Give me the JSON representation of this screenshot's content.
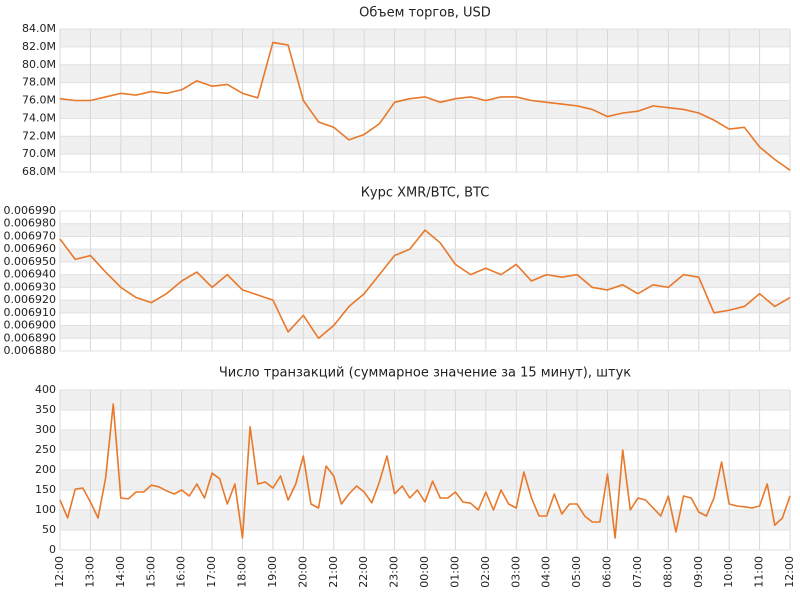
{
  "chart_data": [
    {
      "type": "line",
      "title": "Объем торгов, USD",
      "color": "#e8782a",
      "grid": true,
      "values": [
        76200000,
        76000000,
        76000000,
        76400000,
        76800000,
        76600000,
        77000000,
        76800000,
        77200000,
        78200000,
        77600000,
        77800000,
        76800000,
        76300000,
        82500000,
        82200000,
        76000000,
        73600000,
        73000000,
        71600000,
        72200000,
        73400000,
        75800000,
        76200000,
        76400000,
        75800000,
        76200000,
        76400000,
        76000000,
        76400000,
        76400000,
        76000000,
        75800000,
        75600000,
        75400000,
        75000000,
        74200000,
        74600000,
        74800000,
        75400000,
        75200000,
        75000000,
        74600000,
        73800000,
        72800000,
        73000000,
        70800000,
        69400000,
        68200000
      ],
      "ylim": [
        68000000,
        84000000
      ],
      "yticks": [
        {
          "value": 68000000,
          "label": "68.0M"
        },
        {
          "value": 70000000,
          "label": "70.0M"
        },
        {
          "value": 72000000,
          "label": "72.0M"
        },
        {
          "value": 74000000,
          "label": "74.0M"
        },
        {
          "value": 76000000,
          "label": "76.0M"
        },
        {
          "value": 78000000,
          "label": "78.0M"
        },
        {
          "value": 80000000,
          "label": "80.0M"
        },
        {
          "value": 82000000,
          "label": "82.0M"
        },
        {
          "value": 84000000,
          "label": "84.0M"
        }
      ]
    },
    {
      "type": "line",
      "title": "Курс XMR/BTC, BTC",
      "color": "#e8782a",
      "grid": true,
      "values": [
        0.006968,
        0.006952,
        0.006955,
        0.006942,
        0.00693,
        0.006922,
        0.006918,
        0.006925,
        0.006935,
        0.006942,
        0.00693,
        0.00694,
        0.006928,
        0.006924,
        0.00692,
        0.006895,
        0.006908,
        0.00689,
        0.0069,
        0.006915,
        0.006925,
        0.00694,
        0.006955,
        0.00696,
        0.006975,
        0.006965,
        0.006948,
        0.00694,
        0.006945,
        0.00694,
        0.006948,
        0.006935,
        0.00694,
        0.006938,
        0.00694,
        0.00693,
        0.006928,
        0.006932,
        0.006925,
        0.006932,
        0.00693,
        0.00694,
        0.006938,
        0.00691,
        0.006912,
        0.006915,
        0.006925,
        0.006915,
        0.006922
      ],
      "ylim": [
        0.00688,
        0.00699
      ],
      "yticks": [
        {
          "value": 0.00688,
          "label": "0.006880"
        },
        {
          "value": 0.00689,
          "label": "0.006890"
        },
        {
          "value": 0.0069,
          "label": "0.006900"
        },
        {
          "value": 0.00691,
          "label": "0.006910"
        },
        {
          "value": 0.00692,
          "label": "0.006920"
        },
        {
          "value": 0.00693,
          "label": "0.006930"
        },
        {
          "value": 0.00694,
          "label": "0.006940"
        },
        {
          "value": 0.00695,
          "label": "0.006950"
        },
        {
          "value": 0.00696,
          "label": "0.006960"
        },
        {
          "value": 0.00697,
          "label": "0.006970"
        },
        {
          "value": 0.00698,
          "label": "0.006980"
        },
        {
          "value": 0.00699,
          "label": "0.006990"
        }
      ]
    },
    {
      "type": "line",
      "title": "Число транзакций (суммарное значение за 15 минут), штук",
      "color": "#e8782a",
      "grid": true,
      "categories": [
        "12:00",
        null,
        null,
        null,
        "13:00",
        null,
        null,
        null,
        "14:00",
        null,
        null,
        null,
        "15:00",
        null,
        null,
        null,
        "16:00",
        null,
        null,
        null,
        "17:00",
        null,
        null,
        null,
        "18:00",
        null,
        null,
        null,
        "19:00",
        null,
        null,
        null,
        "20:00",
        null,
        null,
        null,
        "21:00",
        null,
        null,
        null,
        "22:00",
        null,
        null,
        null,
        "23:00",
        null,
        null,
        null,
        "00:00",
        null,
        null,
        null,
        "01:00",
        null,
        null,
        null,
        "02:00",
        null,
        null,
        null,
        "03:00",
        null,
        null,
        null,
        "04:00",
        null,
        null,
        null,
        "05:00",
        null,
        null,
        null,
        "06:00",
        null,
        null,
        null,
        "07:00",
        null,
        null,
        null,
        "08:00",
        null,
        null,
        null,
        "09:00",
        null,
        null,
        null,
        "10:00",
        null,
        null,
        null,
        "11:00",
        null,
        null,
        null,
        "12:00"
      ],
      "values": [
        125,
        80,
        152,
        155,
        120,
        80,
        180,
        365,
        130,
        128,
        145,
        145,
        162,
        158,
        148,
        140,
        150,
        135,
        165,
        130,
        192,
        178,
        115,
        165,
        30,
        308,
        165,
        170,
        155,
        185,
        125,
        165,
        235,
        115,
        105,
        210,
        185,
        115,
        140,
        160,
        145,
        118,
        170,
        235,
        140,
        160,
        130,
        150,
        120,
        172,
        130,
        130,
        145,
        120,
        117,
        100,
        145,
        100,
        150,
        115,
        105,
        195,
        130,
        85,
        85,
        140,
        90,
        115,
        115,
        85,
        70,
        70,
        190,
        30,
        250,
        100,
        130,
        125,
        105,
        85,
        135,
        45,
        135,
        130,
        95,
        85,
        130,
        220,
        115,
        110,
        108,
        105,
        110,
        165,
        62,
        80,
        135
      ],
      "ylim": [
        0,
        400
      ],
      "yticks": [
        0,
        50,
        100,
        150,
        200,
        250,
        300,
        350,
        400
      ]
    }
  ]
}
